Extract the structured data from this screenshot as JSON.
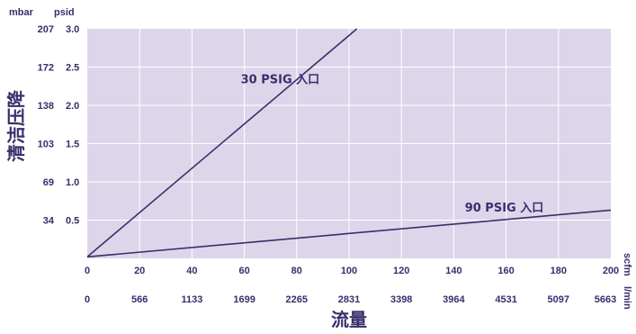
{
  "chart_data": {
    "type": "line",
    "title": "",
    "xlabel": "流量",
    "ylabel": "清洁压降",
    "x_unit_primary": "scfm",
    "x_unit_secondary": "l/min",
    "y_unit_secondary": "mbar",
    "y_unit_primary": "psid",
    "xlim": [
      0,
      200
    ],
    "ylim": [
      0,
      3.0
    ],
    "x_ticks": [
      0,
      20,
      40,
      60,
      80,
      100,
      120,
      140,
      160,
      180,
      200
    ],
    "x_ticks_secondary": [
      "0",
      "566",
      "1133",
      "1699",
      "2265",
      "2831",
      "3398",
      "3964",
      "4531",
      "5097",
      "5663"
    ],
    "y_ticks": [
      0.5,
      1.0,
      1.5,
      2.0,
      2.5,
      3.0
    ],
    "y_tick_labels": [
      "0.5",
      "1.0",
      "1.5",
      "2.0",
      "2.5",
      "3.0"
    ],
    "y_ticks_secondary": [
      "34",
      "69",
      "103",
      "138",
      "172",
      "207"
    ],
    "grid": true,
    "background": "#ddd6ea",
    "series": [
      {
        "name": "30 PSIG  入口",
        "x": [
          0,
          103
        ],
        "y": [
          0.02,
          3.0
        ],
        "color": "#3a2d6b"
      },
      {
        "name": "90 PSIG  入口",
        "x": [
          0,
          200
        ],
        "y": [
          0.02,
          0.63
        ],
        "color": "#3a2d6b"
      }
    ]
  }
}
